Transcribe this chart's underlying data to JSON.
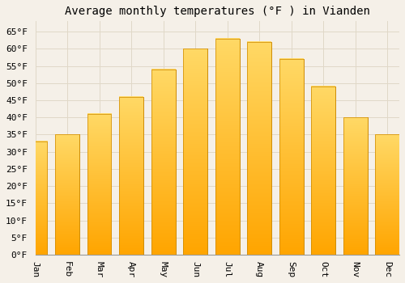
{
  "months": [
    "Jan",
    "Feb",
    "Mar",
    "Apr",
    "May",
    "Jun",
    "Jul",
    "Aug",
    "Sep",
    "Oct",
    "Nov",
    "Dec"
  ],
  "values": [
    33,
    35,
    41,
    46,
    54,
    60,
    63,
    62,
    57,
    49,
    40,
    35
  ],
  "bar_color_bottom": "#FFA500",
  "bar_color_top": "#FFD966",
  "bar_edge_color": "#CC8800",
  "title": "Average monthly temperatures (°F ) in Vianden",
  "ylim": [
    0,
    68
  ],
  "yticks": [
    0,
    5,
    10,
    15,
    20,
    25,
    30,
    35,
    40,
    45,
    50,
    55,
    60,
    65
  ],
  "background_color": "#F5F0E8",
  "grid_color": "#E0D8C8",
  "title_fontsize": 10,
  "tick_fontsize": 8,
  "font_family": "monospace"
}
